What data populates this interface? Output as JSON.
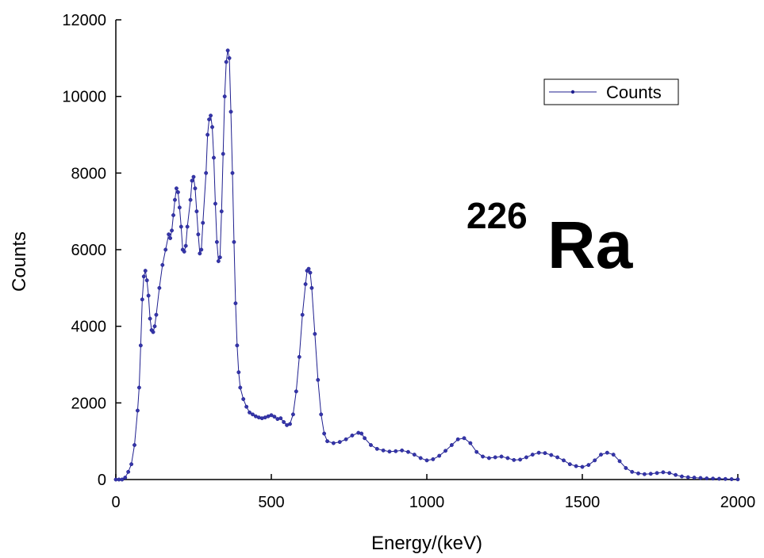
{
  "chart_data": {
    "type": "line",
    "x_label": "Energy/(keV)",
    "y_label": "Counts",
    "annotation": {
      "mass_number": "226",
      "symbol": "Ra"
    },
    "xlim": [
      0,
      2000
    ],
    "xticks": [
      0,
      500,
      1000,
      1500,
      2000
    ],
    "ylim": [
      0,
      12000
    ],
    "yticks": [
      0,
      2000,
      4000,
      6000,
      8000,
      10000,
      12000
    ],
    "legend": "upper right",
    "x": [
      0,
      10,
      20,
      30,
      40,
      50,
      60,
      70,
      75,
      80,
      85,
      90,
      95,
      100,
      105,
      110,
      115,
      120,
      125,
      130,
      140,
      150,
      160,
      170,
      175,
      180,
      185,
      190,
      195,
      200,
      205,
      210,
      215,
      220,
      225,
      230,
      240,
      245,
      250,
      255,
      260,
      265,
      270,
      275,
      280,
      290,
      295,
      300,
      305,
      310,
      315,
      320,
      325,
      330,
      335,
      340,
      345,
      350,
      355,
      360,
      365,
      370,
      375,
      380,
      385,
      390,
      395,
      400,
      410,
      420,
      430,
      440,
      450,
      460,
      470,
      480,
      490,
      500,
      510,
      520,
      530,
      540,
      550,
      560,
      570,
      580,
      590,
      600,
      610,
      615,
      620,
      625,
      630,
      640,
      650,
      660,
      670,
      680,
      700,
      720,
      740,
      760,
      780,
      790,
      800,
      820,
      840,
      860,
      880,
      900,
      920,
      940,
      960,
      980,
      1000,
      1020,
      1040,
      1060,
      1080,
      1100,
      1120,
      1140,
      1160,
      1180,
      1200,
      1220,
      1240,
      1260,
      1280,
      1300,
      1320,
      1340,
      1360,
      1380,
      1400,
      1420,
      1440,
      1460,
      1480,
      1500,
      1520,
      1540,
      1560,
      1580,
      1600,
      1620,
      1640,
      1660,
      1680,
      1700,
      1720,
      1740,
      1760,
      1780,
      1800,
      1820,
      1840,
      1860,
      1880,
      1900,
      1920,
      1940,
      1960,
      1980,
      2000
    ],
    "series": [
      {
        "name": "Counts",
        "color": "#1f1f8f",
        "values": [
          0,
          0,
          0,
          50,
          200,
          400,
          900,
          1800,
          2400,
          3500,
          4700,
          5300,
          5450,
          5200,
          4800,
          4200,
          3900,
          3850,
          4000,
          4300,
          5000,
          5600,
          6000,
          6400,
          6300,
          6500,
          6900,
          7300,
          7600,
          7500,
          7100,
          6600,
          6000,
          5950,
          6100,
          6600,
          7300,
          7800,
          7900,
          7600,
          7000,
          6400,
          5900,
          6000,
          6700,
          8000,
          9000,
          9400,
          9500,
          9200,
          8400,
          7200,
          6200,
          5700,
          5800,
          7000,
          8500,
          10000,
          10900,
          11200,
          11000,
          9600,
          8000,
          6200,
          4600,
          3500,
          2800,
          2400,
          2100,
          1900,
          1750,
          1700,
          1650,
          1620,
          1600,
          1620,
          1650,
          1680,
          1640,
          1580,
          1600,
          1500,
          1420,
          1450,
          1700,
          2300,
          3200,
          4300,
          5100,
          5450,
          5500,
          5400,
          5000,
          3800,
          2600,
          1700,
          1200,
          1000,
          950,
          980,
          1050,
          1150,
          1220,
          1200,
          1080,
          900,
          800,
          760,
          730,
          740,
          760,
          720,
          650,
          560,
          500,
          530,
          620,
          750,
          900,
          1050,
          1080,
          950,
          720,
          600,
          560,
          580,
          600,
          560,
          510,
          520,
          580,
          650,
          700,
          690,
          640,
          580,
          500,
          400,
          350,
          330,
          380,
          500,
          650,
          700,
          650,
          480,
          300,
          200,
          160,
          140,
          150,
          170,
          190,
          170,
          120,
          80,
          60,
          50,
          40,
          30,
          25,
          20,
          15,
          10,
          5
        ]
      }
    ]
  }
}
